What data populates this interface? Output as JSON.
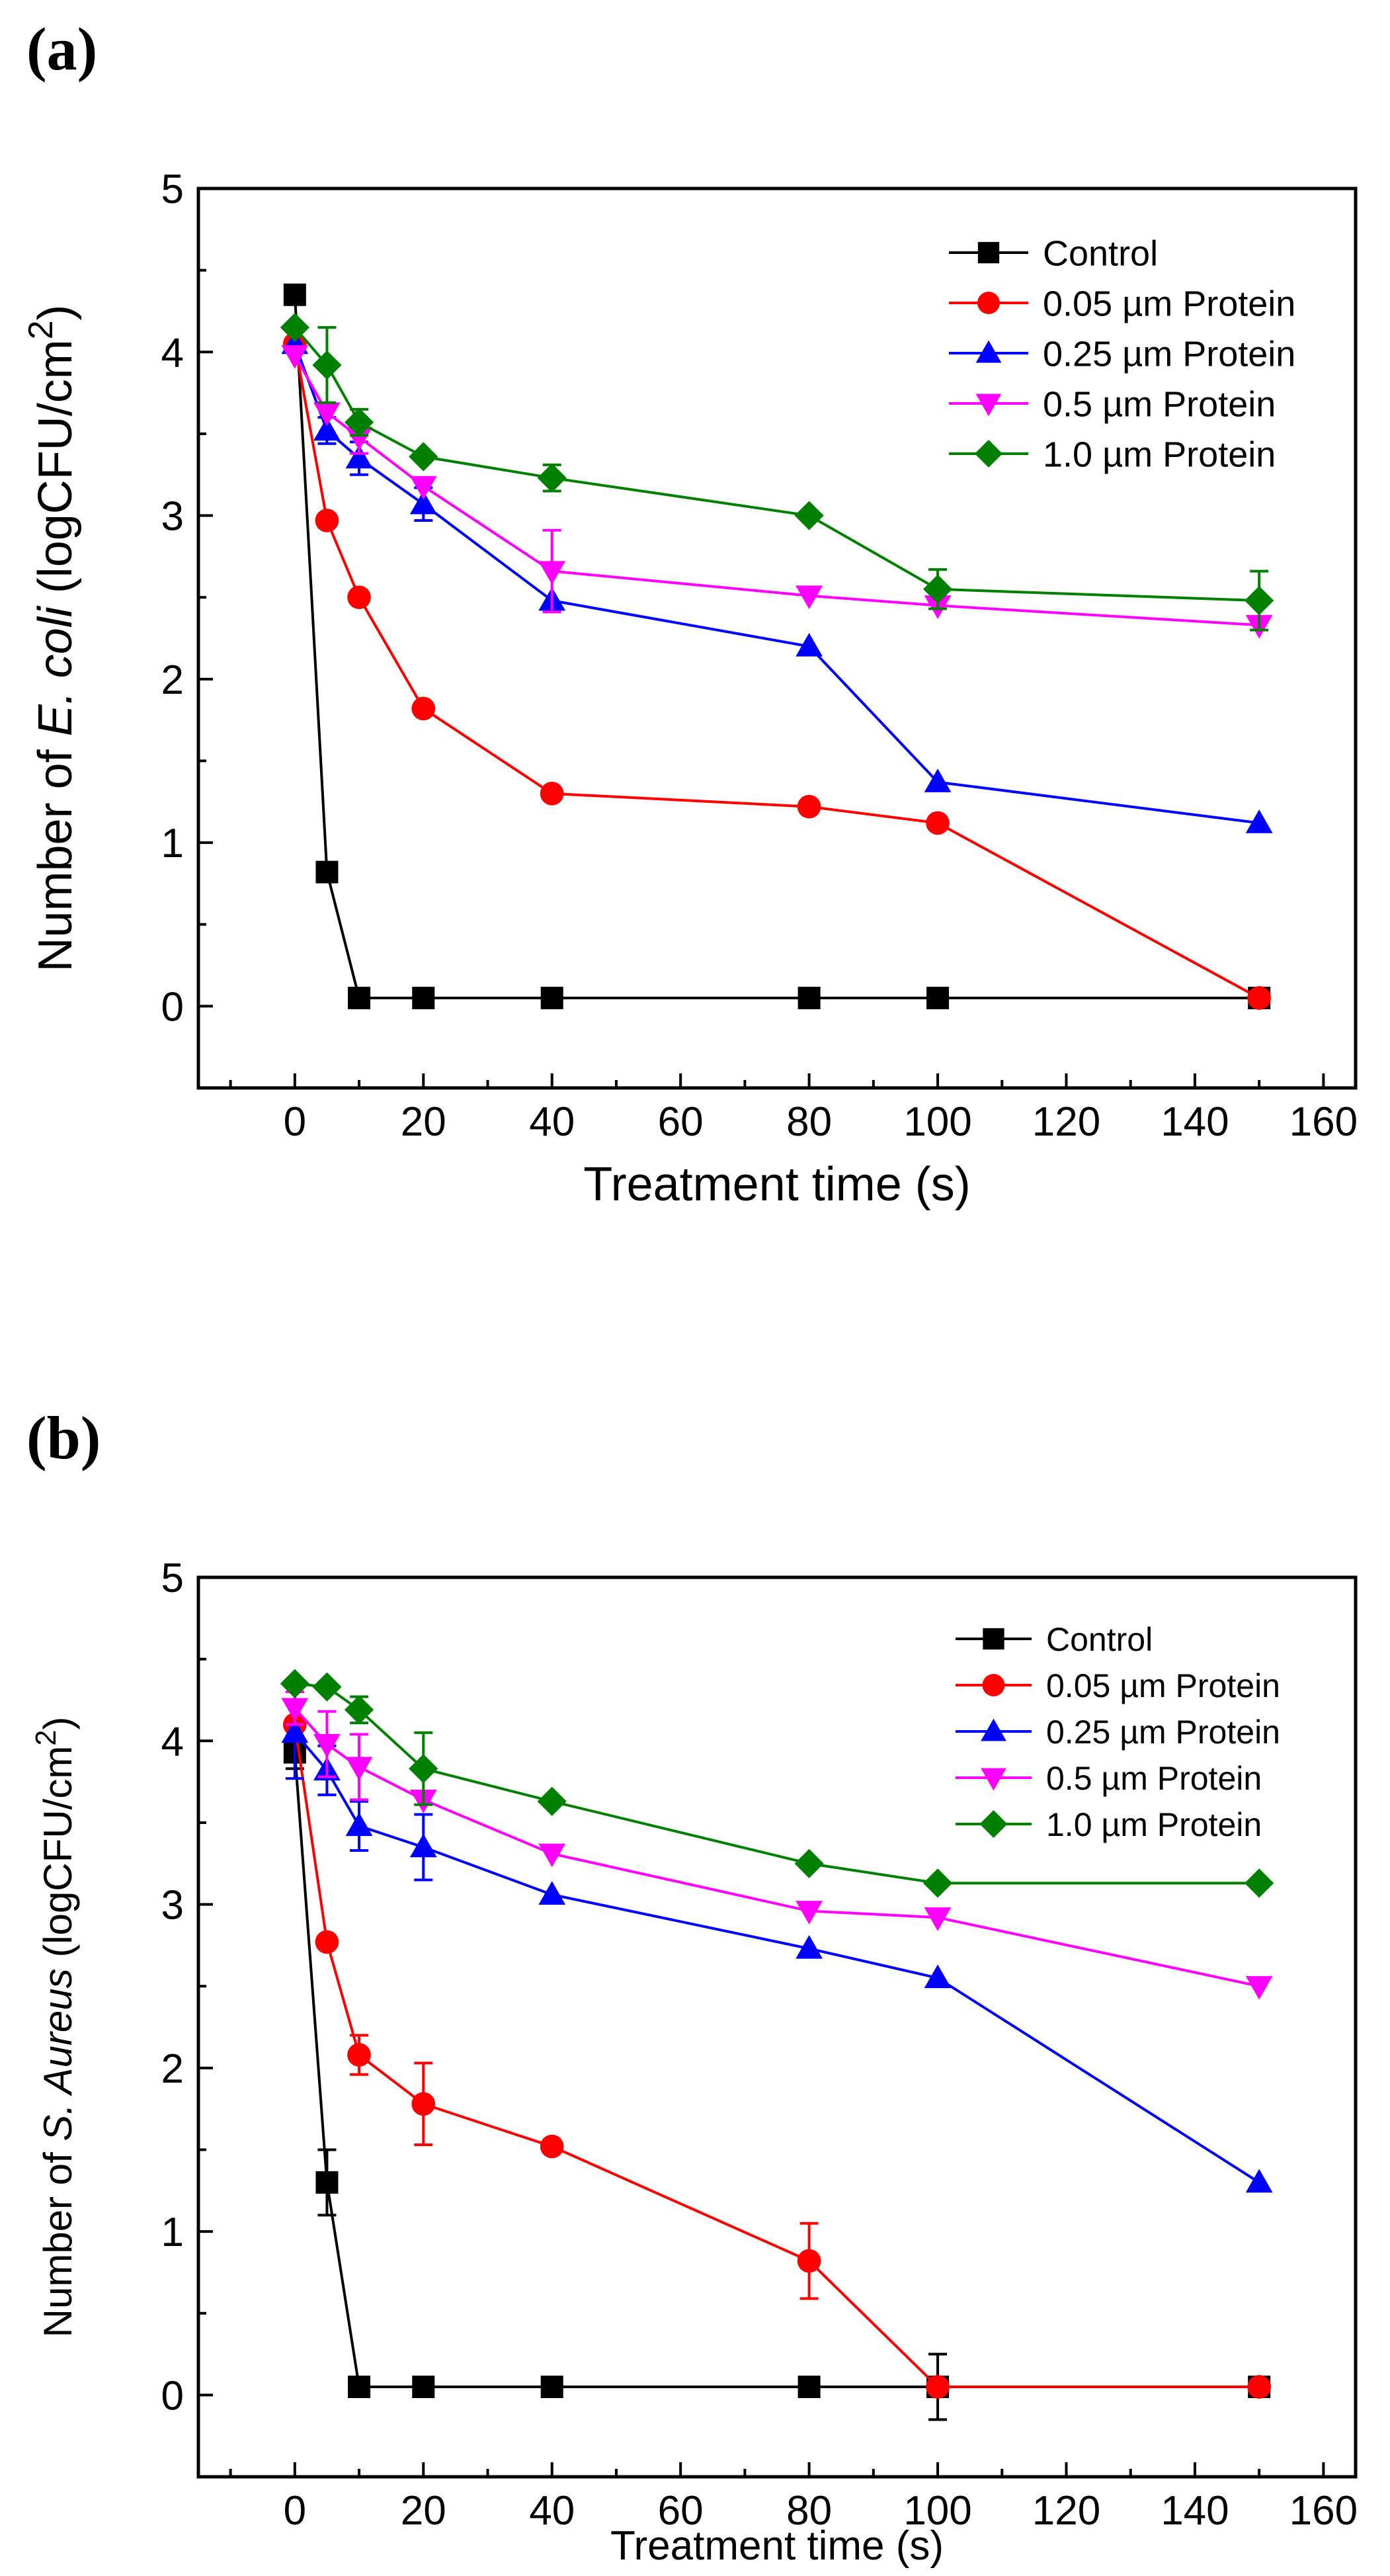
{
  "chart_data": [
    {
      "type": "line",
      "panel_label": "(a)",
      "xlabel": "Treatment time (s)",
      "ylabel_prefix": "Number of ",
      "ylabel_italic": "E. coli",
      "ylabel_suffix": " (logCFU/cm",
      "ylabel_sup": "2",
      "ylabel_close": ")",
      "xlim": [
        -15,
        165
      ],
      "ylim": [
        -0.5,
        5
      ],
      "xticks": [
        0,
        20,
        40,
        60,
        80,
        100,
        120,
        140,
        160
      ],
      "yticks": [
        0,
        1,
        2,
        3,
        4,
        5
      ],
      "legend_position": "top-right",
      "series": [
        {
          "name": "Control",
          "color": "#000000",
          "marker": "square",
          "x": [
            0,
            5,
            10,
            20,
            40,
            80,
            100,
            150
          ],
          "y": [
            4.35,
            0.82,
            0.05,
            0.05,
            0.05,
            0.05,
            0.05,
            0.05
          ],
          "err": [
            0,
            0,
            0,
            0,
            0,
            0,
            0,
            0
          ]
        },
        {
          "name": "0.05 µm Protein",
          "color": "#ff0000",
          "marker": "circle",
          "x": [
            0,
            5,
            10,
            20,
            40,
            80,
            100,
            150
          ],
          "y": [
            4.05,
            2.97,
            2.5,
            1.82,
            1.3,
            1.22,
            1.12,
            0.05
          ],
          "err": [
            0,
            0,
            0,
            0,
            0,
            0,
            0,
            0
          ]
        },
        {
          "name": "0.25 µm Protein",
          "color": "#0000ff",
          "marker": "triangle-up",
          "x": [
            0,
            5,
            10,
            20,
            40,
            80,
            100,
            150
          ],
          "y": [
            4.05,
            3.52,
            3.35,
            3.07,
            2.48,
            2.2,
            1.37,
            1.12
          ],
          "err": [
            0,
            0.08,
            0.1,
            0.1,
            0,
            0,
            0,
            0
          ]
        },
        {
          "name": "0.5 µm Protein",
          "color": "#ff00ff",
          "marker": "triangle-down",
          "x": [
            0,
            5,
            10,
            20,
            40,
            80,
            100,
            150
          ],
          "y": [
            3.98,
            3.63,
            3.48,
            3.18,
            2.66,
            2.51,
            2.45,
            2.33
          ],
          "err": [
            0,
            0,
            0.1,
            0,
            0.25,
            0,
            0,
            0
          ]
        },
        {
          "name": "1.0 µm Protein",
          "color": "#008000",
          "marker": "diamond",
          "x": [
            0,
            5,
            10,
            20,
            40,
            80,
            100,
            150
          ],
          "y": [
            4.15,
            3.92,
            3.57,
            3.36,
            3.23,
            3.0,
            2.55,
            2.48
          ],
          "err": [
            0,
            0.23,
            0.08,
            0,
            0.08,
            0,
            0.12,
            0.18
          ]
        }
      ]
    },
    {
      "type": "line",
      "panel_label": "(b)",
      "xlabel": "Treatment time (s)",
      "ylabel_prefix": "Number of ",
      "ylabel_italic": "S. Aureus",
      "ylabel_suffix": " (logCFU/cm",
      "ylabel_sup": "2",
      "ylabel_close": ")",
      "xlim": [
        -15,
        165
      ],
      "ylim": [
        -0.5,
        5
      ],
      "xticks": [
        0,
        20,
        40,
        60,
        80,
        100,
        120,
        140,
        160
      ],
      "yticks": [
        0,
        1,
        2,
        3,
        4,
        5
      ],
      "legend_position": "top-right",
      "series": [
        {
          "name": "Control",
          "color": "#000000",
          "marker": "square",
          "x": [
            0,
            5,
            10,
            20,
            40,
            80,
            100,
            150
          ],
          "y": [
            3.93,
            1.3,
            0.05,
            0.05,
            0.05,
            0.05,
            0.05,
            0.05
          ],
          "err": [
            0.1,
            0.2,
            0,
            0,
            0,
            0,
            0.2,
            0.06
          ]
        },
        {
          "name": "0.05 µm Protein",
          "color": "#ff0000",
          "marker": "circle",
          "x": [
            0,
            5,
            10,
            20,
            40,
            80,
            100,
            150
          ],
          "y": [
            4.1,
            2.77,
            2.08,
            1.78,
            1.52,
            0.82,
            0.05,
            0.05
          ],
          "err": [
            0,
            0,
            0.12,
            0.25,
            0,
            0.23,
            0,
            0
          ]
        },
        {
          "name": "0.25 µm Protein",
          "color": "#0000ff",
          "marker": "triangle-up",
          "x": [
            0,
            5,
            10,
            20,
            40,
            80,
            100,
            150
          ],
          "y": [
            4.05,
            3.82,
            3.48,
            3.35,
            3.06,
            2.73,
            2.55,
            1.3
          ],
          "err": [
            0.28,
            0.15,
            0.15,
            0.2,
            0,
            0,
            0,
            0
          ]
        },
        {
          "name": "0.5 µm Protein",
          "color": "#ff00ff",
          "marker": "triangle-down",
          "x": [
            0,
            5,
            10,
            20,
            40,
            80,
            100,
            150
          ],
          "y": [
            4.2,
            3.98,
            3.84,
            3.64,
            3.31,
            2.96,
            2.92,
            2.5
          ],
          "err": [
            0.1,
            0.2,
            0.2,
            0,
            0,
            0,
            0,
            0
          ]
        },
        {
          "name": "1.0 µm Protein",
          "color": "#008000",
          "marker": "diamond",
          "x": [
            0,
            5,
            10,
            20,
            40,
            80,
            100,
            150
          ],
          "y": [
            4.35,
            4.33,
            4.19,
            3.83,
            3.63,
            3.25,
            3.13,
            3.13
          ],
          "err": [
            0,
            0,
            0.08,
            0.22,
            0,
            0,
            0,
            0
          ]
        }
      ]
    }
  ]
}
